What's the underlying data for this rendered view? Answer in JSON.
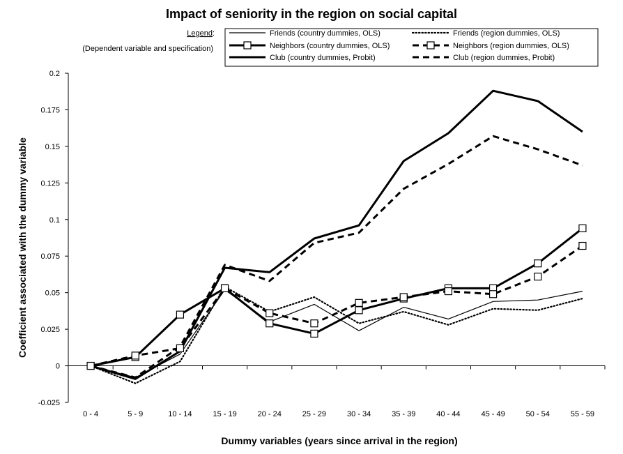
{
  "chart_data": {
    "type": "line",
    "title": "Impact of seniority in the region on social capital",
    "xlabel": "Dummy variables (years since arrival in the region)",
    "ylabel": "Coefficient associated with the dummy variable",
    "ylim": [
      -0.025,
      0.2
    ],
    "yticks": [
      "-0.025",
      "0",
      "0.025",
      "0.05",
      "0.075",
      "0.1",
      "0.125",
      "0.15",
      "0.175",
      "0.2"
    ],
    "categories": [
      "0 - 4",
      "5 - 9",
      "10 - 14",
      "15 - 19",
      "20 - 24",
      "25 - 29",
      "30 - 34",
      "35 - 39",
      "40 - 44",
      "45 - 49",
      "50 - 54",
      "55 - 59"
    ],
    "grid": false,
    "legend": {
      "position": "top",
      "label": "Legend",
      "sublabel": "(Dependent variable and specification)"
    },
    "series": [
      {
        "name": "Friends (country dummies, OLS)",
        "style": "thin-solid",
        "values": [
          0,
          -0.008,
          0.008,
          0.052,
          0.03,
          0.042,
          0.024,
          0.04,
          0.032,
          0.044,
          0.045,
          0.051
        ]
      },
      {
        "name": "Friends (region dummies, OLS)",
        "style": "dotted",
        "values": [
          0,
          -0.012,
          0.003,
          0.054,
          0.037,
          0.047,
          0.029,
          0.037,
          0.028,
          0.039,
          0.038,
          0.046
        ]
      },
      {
        "name": "Neighbors (country dummies, OLS)",
        "style": "thick-solid-square",
        "values": [
          0,
          0.006,
          0.035,
          0.053,
          0.029,
          0.022,
          0.038,
          0.046,
          0.053,
          0.053,
          0.07,
          0.094
        ]
      },
      {
        "name": "Neighbors (region dummies, OLS)",
        "style": "thick-dashed-square",
        "values": [
          0,
          0.007,
          0.012,
          0.053,
          0.036,
          0.029,
          0.043,
          0.047,
          0.051,
          0.049,
          0.061,
          0.082
        ]
      },
      {
        "name": "Club (country dummies, Probit)",
        "style": "thick-solid",
        "values": [
          0,
          -0.009,
          0.01,
          0.067,
          0.064,
          0.087,
          0.096,
          0.14,
          0.159,
          0.188,
          0.181,
          0.16
        ]
      },
      {
        "name": "Club (region dummies, Probit)",
        "style": "thick-dashed",
        "values": [
          0,
          -0.008,
          0.013,
          0.069,
          0.058,
          0.084,
          0.091,
          0.121,
          0.138,
          0.157,
          0.148,
          0.137
        ]
      }
    ]
  }
}
